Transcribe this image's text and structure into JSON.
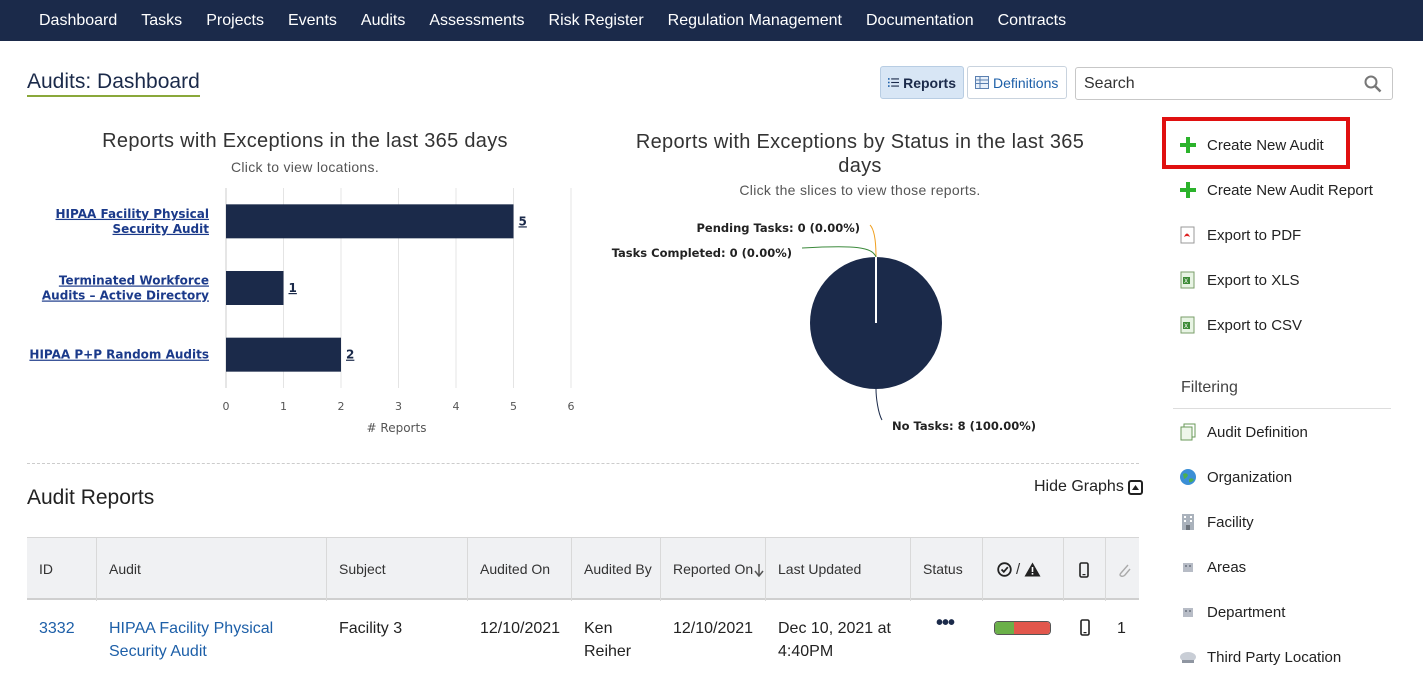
{
  "nav": {
    "items": [
      "Dashboard",
      "Tasks",
      "Projects",
      "Events",
      "Audits",
      "Assessments",
      "Risk Register",
      "Regulation Management",
      "Documentation",
      "Contracts"
    ]
  },
  "page": {
    "title": "Audits: Dashboard",
    "view_reports": "Reports",
    "view_definitions": "Definitions"
  },
  "search": {
    "placeholder": "Search"
  },
  "bar_chart": {
    "title": "Reports with Exceptions in the last 365 days",
    "subtitle": "Click to view locations."
  },
  "pie_chart": {
    "title_line1": "Reports with Exceptions by Status in the last 365",
    "title_line2": "days",
    "subtitle": "Click the slices to view those reports."
  },
  "chart_data": [
    {
      "type": "bar",
      "orientation": "horizontal",
      "title": "Reports with Exceptions in the last 365 days",
      "subtitle": "Click to view locations.",
      "categories": [
        "HIPAA Facility Physical Security Audit",
        "Terminated Workforce Audits – Active Directory",
        "HIPAA P+P Random Audits"
      ],
      "values": [
        5,
        1,
        2
      ],
      "xlabel": "# Reports",
      "xlim": [
        0,
        6
      ],
      "xticks": [
        "0",
        "1",
        "2",
        "3",
        "4",
        "5",
        "6"
      ],
      "grid": true,
      "color": "#1b2a4a"
    },
    {
      "type": "pie",
      "title": "Reports with Exceptions by Status in the last 365 days",
      "subtitle": "Click the slices to view those reports.",
      "labels": [
        "Pending Tasks",
        "Tasks Completed",
        "No Tasks"
      ],
      "values": [
        0,
        0,
        8
      ],
      "data_labels": [
        "Pending Tasks: 0 (0.00%)",
        "Tasks Completed: 0 (0.00%)",
        "No Tasks: 8 (100.00%)"
      ],
      "color": "#1b2a4a"
    }
  ],
  "actions": {
    "items": [
      {
        "label": "Create New Audit",
        "icon": "plus-icon"
      },
      {
        "label": "Create New Audit Report",
        "icon": "plus-icon"
      },
      {
        "label": "Export to PDF",
        "icon": "pdf-icon"
      },
      {
        "label": "Export to XLS",
        "icon": "xls-icon"
      },
      {
        "label": "Export to CSV",
        "icon": "csv-icon"
      }
    ]
  },
  "filtering": {
    "heading": "Filtering",
    "items": [
      {
        "label": "Audit Definition",
        "icon": "document-copy-icon"
      },
      {
        "label": "Organization",
        "icon": "globe-icon"
      },
      {
        "label": "Facility",
        "icon": "building-icon"
      },
      {
        "label": "Areas",
        "icon": "area-icon"
      },
      {
        "label": "Department",
        "icon": "department-icon"
      },
      {
        "label": "Third Party Location",
        "icon": "cloud-icon"
      }
    ]
  },
  "reports": {
    "heading": "Audit Reports",
    "hide_graphs": "Hide Graphs",
    "columns": [
      "ID",
      "Audit",
      "Subject",
      "Audited On",
      "Audited By",
      "Reported On",
      "Last Updated",
      "Status"
    ],
    "rows": [
      {
        "id": "3332",
        "audit": "HIPAA Facility Physical Security Audit",
        "subject": "Facility 3",
        "audited_on": "12/10/2021",
        "audited_by": "Ken Reiher",
        "reported_on": "12/10/2021",
        "last_updated": "Dec 10, 2021 at 4:40PM",
        "status": "•••",
        "count": "1"
      }
    ]
  },
  "colors": {
    "nav_bg": "#1b2a4a",
    "bar": "#1b2a4a",
    "link": "#1d5fa8",
    "highlight": "#e01010",
    "plus": "#2bb32b"
  }
}
